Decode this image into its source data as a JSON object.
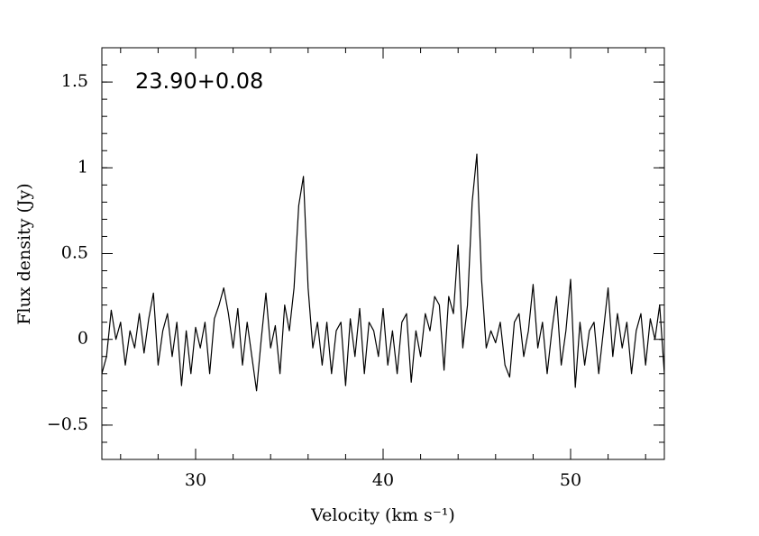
{
  "chart_data": {
    "type": "line",
    "annotation": "23.90+0.08",
    "xlabel": "Velocity (km s⁻¹)",
    "ylabel": "Flux density (Jy)",
    "xlim": [
      25,
      55
    ],
    "xticks": [
      30,
      40,
      50
    ],
    "ylim": [
      -0.7,
      1.7
    ],
    "yticks": [
      {
        "value": -0.5,
        "label": "−0.5"
      },
      0,
      0.5,
      1,
      1.5
    ],
    "x": [
      25,
      25.25,
      25.5,
      25.75,
      26,
      26.25,
      26.5,
      26.75,
      27,
      27.25,
      27.5,
      27.75,
      28,
      28.25,
      28.5,
      28.75,
      29,
      29.25,
      29.5,
      29.75,
      30,
      30.25,
      30.5,
      30.75,
      31,
      31.25,
      31.5,
      31.75,
      32,
      32.25,
      32.5,
      32.75,
      33,
      33.25,
      33.5,
      33.75,
      34,
      34.25,
      34.5,
      34.75,
      35,
      35.25,
      35.5,
      35.75,
      36,
      36.25,
      36.5,
      36.75,
      37,
      37.25,
      37.5,
      37.75,
      38,
      38.25,
      38.5,
      38.75,
      39,
      39.25,
      39.5,
      39.75,
      40,
      40.25,
      40.5,
      40.75,
      41,
      41.25,
      41.5,
      41.75,
      42,
      42.25,
      42.5,
      42.75,
      43,
      43.25,
      43.5,
      43.75,
      44,
      44.25,
      44.5,
      44.75,
      45,
      45.25,
      45.5,
      45.75,
      46,
      46.25,
      46.5,
      46.75,
      47,
      47.25,
      47.5,
      47.75,
      48,
      48.25,
      48.5,
      48.75,
      49,
      49.25,
      49.5,
      49.75,
      50,
      50.25,
      50.5,
      50.75,
      51,
      51.25,
      51.5,
      51.75,
      52,
      52.25,
      52.5,
      52.75,
      53,
      53.25,
      53.5,
      53.75,
      54,
      54.25,
      54.5,
      54.75,
      55
    ],
    "series": [
      {
        "color": "#000000",
        "values": [
          -0.2,
          -0.1,
          0.17,
          0.0,
          0.1,
          -0.15,
          0.05,
          -0.05,
          0.15,
          -0.08,
          0.12,
          0.27,
          -0.15,
          0.05,
          0.15,
          -0.1,
          0.1,
          -0.27,
          0.05,
          -0.2,
          0.07,
          -0.05,
          0.1,
          -0.2,
          0.12,
          0.2,
          0.3,
          0.15,
          -0.05,
          0.18,
          -0.15,
          0.1,
          -0.1,
          -0.3,
          0.0,
          0.27,
          -0.05,
          0.08,
          -0.2,
          0.2,
          0.05,
          0.3,
          0.78,
          0.95,
          0.3,
          -0.05,
          0.1,
          -0.15,
          0.1,
          -0.2,
          0.05,
          0.1,
          -0.27,
          0.12,
          -0.1,
          0.18,
          -0.2,
          0.1,
          0.05,
          -0.1,
          0.18,
          -0.15,
          0.05,
          -0.2,
          0.1,
          0.15,
          -0.25,
          0.05,
          -0.1,
          0.15,
          0.05,
          0.25,
          0.2,
          -0.18,
          0.25,
          0.15,
          0.55,
          -0.05,
          0.2,
          0.8,
          1.08,
          0.35,
          -0.05,
          0.05,
          -0.02,
          0.1,
          -0.15,
          -0.22,
          0.1,
          0.15,
          -0.1,
          0.05,
          0.32,
          -0.05,
          0.1,
          -0.2,
          0.05,
          0.25,
          -0.15,
          0.05,
          0.35,
          -0.28,
          0.1,
          -0.15,
          0.05,
          0.1,
          -0.2,
          0.05,
          0.3,
          -0.1,
          0.15,
          -0.05,
          0.1,
          -0.2,
          0.05,
          0.15,
          -0.15,
          0.12,
          0.0,
          0.2,
          -0.2
        ]
      }
    ]
  }
}
